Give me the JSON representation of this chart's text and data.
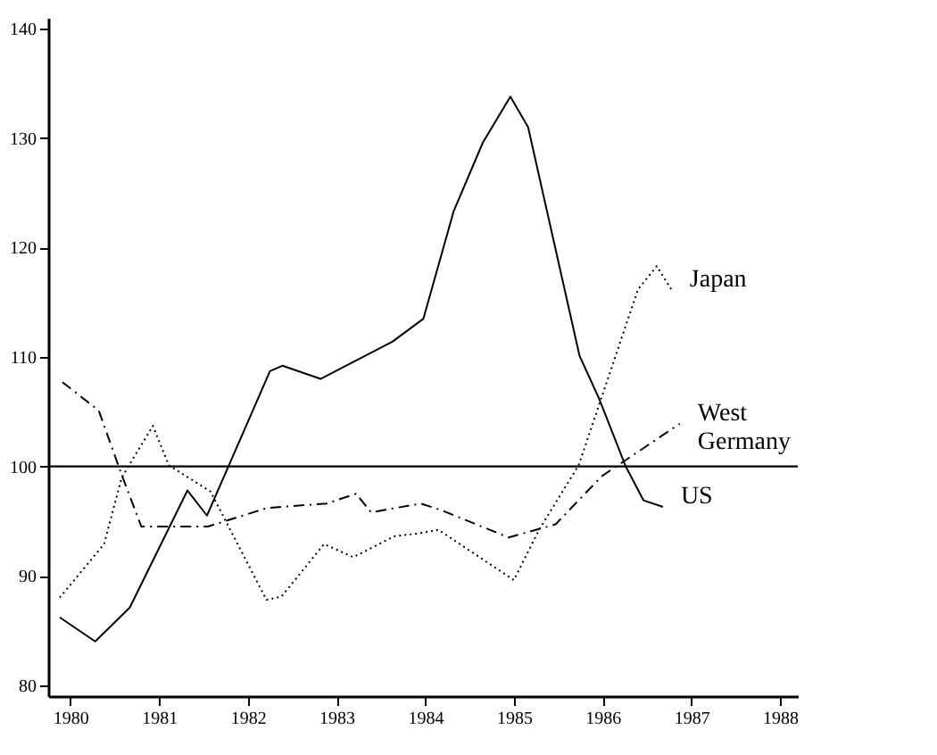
{
  "chart_data": {
    "type": "line",
    "xlim": [
      1979.75,
      1988.2
    ],
    "xticks": [
      1980,
      1981,
      1982,
      1983,
      1984,
      1985,
      1986,
      1987,
      1988
    ],
    "ylim": [
      79,
      141
    ],
    "yticks": [
      80,
      90,
      100,
      110,
      120,
      130,
      140
    ],
    "grid": false,
    "legend": false,
    "marker": "none",
    "ref_lines": [
      {
        "axis": "y",
        "value": 100,
        "color": "#000000",
        "line_style": "solid"
      }
    ],
    "series": [
      {
        "name": "US",
        "color": "#000000",
        "line_style": "solid",
        "x": [
          1979.88,
          1980.28,
          1980.67,
          1981.32,
          1981.54,
          1982.25,
          1982.39,
          1982.82,
          1983.63,
          1983.98,
          1984.32,
          1984.65,
          1984.96,
          1985.16,
          1985.74,
          1985.96,
          1986.26,
          1986.46,
          1986.68
        ],
        "values": [
          86.2,
          84.0,
          87.1,
          97.8,
          95.5,
          108.7,
          109.2,
          108.0,
          111.4,
          113.5,
          123.3,
          129.6,
          133.8,
          131.0,
          110.1,
          106.2,
          100.0,
          96.9,
          96.3
        ]
      },
      {
        "name": "Japan",
        "color": "#000000",
        "line_style": "dotted",
        "x": [
          1979.88,
          1980.38,
          1980.58,
          1980.93,
          1981.11,
          1981.58,
          1982.21,
          1982.38,
          1982.86,
          1983.19,
          1983.65,
          1983.95,
          1984.15,
          1985.0,
          1985.29,
          1985.73,
          1986.4,
          1986.61,
          1986.78
        ],
        "values": [
          88.0,
          92.9,
          99.0,
          103.7,
          100.1,
          97.7,
          87.8,
          88.1,
          92.9,
          91.7,
          93.6,
          93.9,
          94.2,
          89.6,
          94.3,
          100.1,
          116.2,
          118.3,
          116.1
        ]
      },
      {
        "name": "West Germany",
        "color": "#000000",
        "line_style": "dashed",
        "x": [
          1979.91,
          1980.32,
          1980.58,
          1980.8,
          1981.55,
          1982.22,
          1982.89,
          1983.22,
          1983.39,
          1983.95,
          1984.18,
          1984.94,
          1985.47,
          1985.99,
          1986.87
        ],
        "values": [
          107.7,
          105.1,
          99.2,
          94.5,
          94.5,
          96.2,
          96.6,
          97.5,
          95.8,
          96.6,
          96.0,
          93.5,
          94.7,
          99.1,
          103.9
        ]
      }
    ]
  }
}
